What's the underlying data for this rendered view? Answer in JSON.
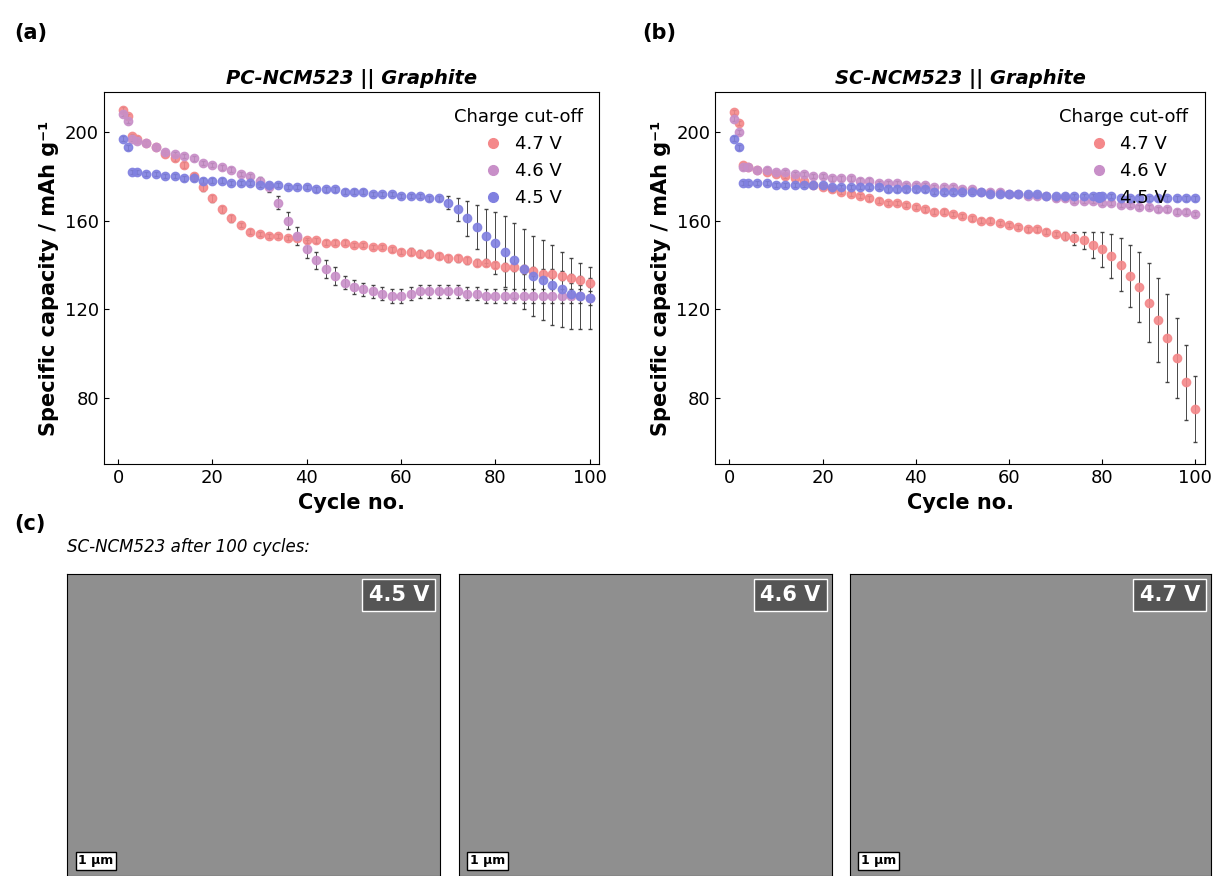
{
  "chart_data": [
    {
      "type": "scatter",
      "panel": "(a)",
      "title": "PC-NCM523 || Graphite",
      "x_label": "Cycle no.",
      "y_label": "Specific capacity / mAh g⁻¹",
      "xlim": [
        -3,
        102
      ],
      "xticks": [
        0,
        20,
        40,
        60,
        80,
        100
      ],
      "ylim": [
        50,
        218
      ],
      "yticks": [
        80,
        120,
        160,
        200
      ],
      "legend": "upper right",
      "legend_title": "Charge cut-off",
      "x": [
        1,
        2,
        3,
        4,
        6,
        8,
        10,
        12,
        14,
        16,
        18,
        20,
        22,
        24,
        26,
        28,
        30,
        32,
        34,
        36,
        38,
        40,
        42,
        44,
        46,
        48,
        50,
        52,
        54,
        56,
        58,
        60,
        62,
        64,
        66,
        68,
        70,
        72,
        74,
        76,
        78,
        80,
        82,
        84,
        86,
        88,
        90,
        92,
        94,
        96,
        98,
        100
      ],
      "series": [
        {
          "name": "4.7 V",
          "color": "#f4888a",
          "marker": "o",
          "line_style": "none",
          "values": [
            210,
            207,
            198,
            197,
            195,
            193,
            190,
            188,
            185,
            180,
            175,
            170,
            165,
            161,
            158,
            155,
            154,
            153,
            153,
            152,
            152,
            151,
            151,
            150,
            150,
            150,
            149,
            149,
            148,
            148,
            147,
            146,
            146,
            145,
            145,
            144,
            143,
            143,
            142,
            141,
            141,
            140,
            139,
            139,
            138,
            137,
            136,
            136,
            135,
            134,
            133,
            132
          ],
          "errors": [
            1,
            1,
            1,
            1,
            1,
            1,
            1,
            1,
            1.5,
            1.5,
            1.5,
            1.5,
            1.5,
            1.5,
            1,
            1,
            1,
            1,
            1,
            1,
            1,
            1,
            1,
            1,
            1,
            1,
            1,
            1,
            1,
            1,
            1,
            1,
            1.5,
            1.5,
            1.5,
            1.5,
            1.5,
            1.5,
            1.5,
            1.5,
            1.5,
            1.5,
            2,
            2,
            2,
            2,
            2,
            2,
            2,
            2,
            2,
            2
          ]
        },
        {
          "name": "4.6 V",
          "color": "#c88fc8",
          "marker": "o",
          "line_style": "none",
          "values": [
            208,
            205,
            197,
            196,
            195,
            193,
            191,
            190,
            189,
            188,
            186,
            185,
            184,
            183,
            181,
            180,
            178,
            175,
            168,
            160,
            153,
            147,
            142,
            138,
            135,
            132,
            130,
            129,
            128,
            127,
            126,
            126,
            127,
            128,
            128,
            128,
            128,
            128,
            127,
            127,
            126,
            126,
            126,
            126,
            126,
            126,
            126,
            126,
            126,
            126,
            126,
            125
          ],
          "errors": [
            1,
            1,
            1,
            1,
            1,
            1,
            1,
            1,
            1,
            1,
            1,
            1,
            1,
            1,
            1,
            1,
            1.5,
            2,
            3,
            4,
            4,
            4,
            4,
            4,
            4,
            3,
            3,
            3,
            3,
            3,
            3,
            3,
            3,
            3,
            3,
            3,
            3,
            3,
            3,
            3,
            3,
            3,
            3,
            3,
            3,
            3,
            3,
            3,
            3,
            3,
            3,
            3
          ]
        },
        {
          "name": "4.5 V",
          "color": "#8080e0",
          "marker": "o",
          "line_style": "none",
          "values": [
            197,
            193,
            182,
            182,
            181,
            181,
            180,
            180,
            179,
            179,
            178,
            178,
            178,
            177,
            177,
            177,
            176,
            176,
            176,
            175,
            175,
            175,
            174,
            174,
            174,
            173,
            173,
            173,
            172,
            172,
            172,
            171,
            171,
            171,
            170,
            170,
            168,
            165,
            161,
            157,
            153,
            150,
            146,
            142,
            138,
            135,
            133,
            131,
            129,
            127,
            126,
            125
          ],
          "errors": [
            1,
            1,
            1,
            1,
            1,
            1,
            1,
            1,
            1,
            1,
            1,
            1,
            1,
            1,
            1,
            1,
            1,
            1,
            1,
            1,
            1,
            1,
            1,
            1,
            1,
            1,
            1,
            1,
            1,
            1,
            1,
            1,
            1,
            1,
            1,
            1,
            3,
            5,
            8,
            10,
            12,
            14,
            16,
            17,
            18,
            18,
            18,
            18,
            17,
            16,
            15,
            14
          ]
        }
      ]
    },
    {
      "type": "scatter",
      "panel": "(b)",
      "title": "SC-NCM523 || Graphite",
      "x_label": "Cycle no.",
      "y_label": "Specific capacity / mAh g⁻¹",
      "xlim": [
        -3,
        102
      ],
      "xticks": [
        0,
        20,
        40,
        60,
        80,
        100
      ],
      "ylim": [
        50,
        218
      ],
      "yticks": [
        80,
        120,
        160,
        200
      ],
      "legend": "upper right",
      "legend_title": "Charge cut-off",
      "x": [
        1,
        2,
        3,
        4,
        6,
        8,
        10,
        12,
        14,
        16,
        18,
        20,
        22,
        24,
        26,
        28,
        30,
        32,
        34,
        36,
        38,
        40,
        42,
        44,
        46,
        48,
        50,
        52,
        54,
        56,
        58,
        60,
        62,
        64,
        66,
        68,
        70,
        72,
        74,
        76,
        78,
        80,
        82,
        84,
        86,
        88,
        90,
        92,
        94,
        96,
        98,
        100
      ],
      "series": [
        {
          "name": "4.7 V",
          "color": "#f4888a",
          "marker": "o",
          "line_style": "none",
          "values": [
            209,
            204,
            185,
            184,
            183,
            182,
            181,
            180,
            179,
            178,
            176,
            175,
            174,
            173,
            172,
            171,
            170,
            169,
            168,
            168,
            167,
            166,
            165,
            164,
            164,
            163,
            162,
            161,
            160,
            160,
            159,
            158,
            157,
            156,
            156,
            155,
            154,
            153,
            152,
            151,
            149,
            147,
            144,
            140,
            135,
            130,
            123,
            115,
            107,
            98,
            87,
            75
          ],
          "errors": [
            1,
            1,
            1,
            1,
            1,
            1,
            1,
            1,
            1,
            1,
            1,
            1,
            1,
            1,
            1,
            1,
            1,
            1,
            1,
            1,
            1,
            1,
            1,
            1,
            1,
            1,
            1,
            1,
            1,
            1,
            1,
            1,
            1,
            1,
            1,
            1,
            1,
            2,
            3,
            4,
            6,
            8,
            10,
            12,
            14,
            16,
            18,
            19,
            20,
            18,
            17,
            15
          ]
        },
        {
          "name": "4.6 V",
          "color": "#c88fc8",
          "marker": "o",
          "line_style": "none",
          "values": [
            206,
            200,
            184,
            184,
            183,
            183,
            182,
            182,
            181,
            181,
            180,
            180,
            179,
            179,
            179,
            178,
            178,
            177,
            177,
            177,
            176,
            176,
            176,
            175,
            175,
            175,
            174,
            174,
            173,
            173,
            173,
            172,
            172,
            171,
            171,
            171,
            170,
            170,
            169,
            169,
            169,
            168,
            168,
            167,
            167,
            166,
            166,
            165,
            165,
            164,
            164,
            163
          ],
          "errors": [
            1,
            1,
            1,
            1,
            1,
            1,
            1,
            1,
            1,
            1,
            1,
            1,
            1,
            1,
            1,
            1,
            1,
            1,
            1,
            1,
            1,
            1,
            1,
            1,
            1,
            1,
            1,
            1,
            1,
            1,
            1,
            1,
            1,
            1,
            1,
            1,
            1,
            1,
            1,
            1,
            1,
            1,
            1,
            1,
            1,
            1,
            1,
            1,
            1,
            1,
            1,
            1
          ]
        },
        {
          "name": "4.5 V",
          "color": "#8080e0",
          "marker": "o",
          "line_style": "none",
          "values": [
            197,
            193,
            177,
            177,
            177,
            177,
            176,
            176,
            176,
            176,
            176,
            176,
            175,
            175,
            175,
            175,
            175,
            175,
            174,
            174,
            174,
            174,
            174,
            173,
            173,
            173,
            173,
            173,
            173,
            172,
            172,
            172,
            172,
            172,
            172,
            171,
            171,
            171,
            171,
            171,
            171,
            171,
            171,
            170,
            170,
            170,
            170,
            170,
            170,
            170,
            170,
            170
          ],
          "errors": [
            1,
            1,
            1,
            1,
            1,
            1,
            1,
            1,
            1,
            1,
            1,
            1,
            1,
            1,
            1,
            1,
            1,
            1,
            1,
            1,
            1,
            1,
            1,
            1,
            1,
            1,
            1,
            1,
            1,
            1,
            1,
            1,
            1,
            1,
            1,
            1,
            1,
            1,
            1,
            1,
            1,
            1,
            1,
            1,
            1,
            1,
            1,
            1,
            1,
            1,
            1,
            1
          ]
        }
      ]
    }
  ],
  "panel_c": {
    "label": "(c)",
    "caption": "SC-NCM523 after 100 cycles:",
    "images": [
      {
        "label": "4.5 V",
        "scale_bar": "1 µm"
      },
      {
        "label": "4.6 V",
        "scale_bar": "1 µm"
      },
      {
        "label": "4.7 V",
        "scale_bar": "1 µm"
      }
    ]
  }
}
